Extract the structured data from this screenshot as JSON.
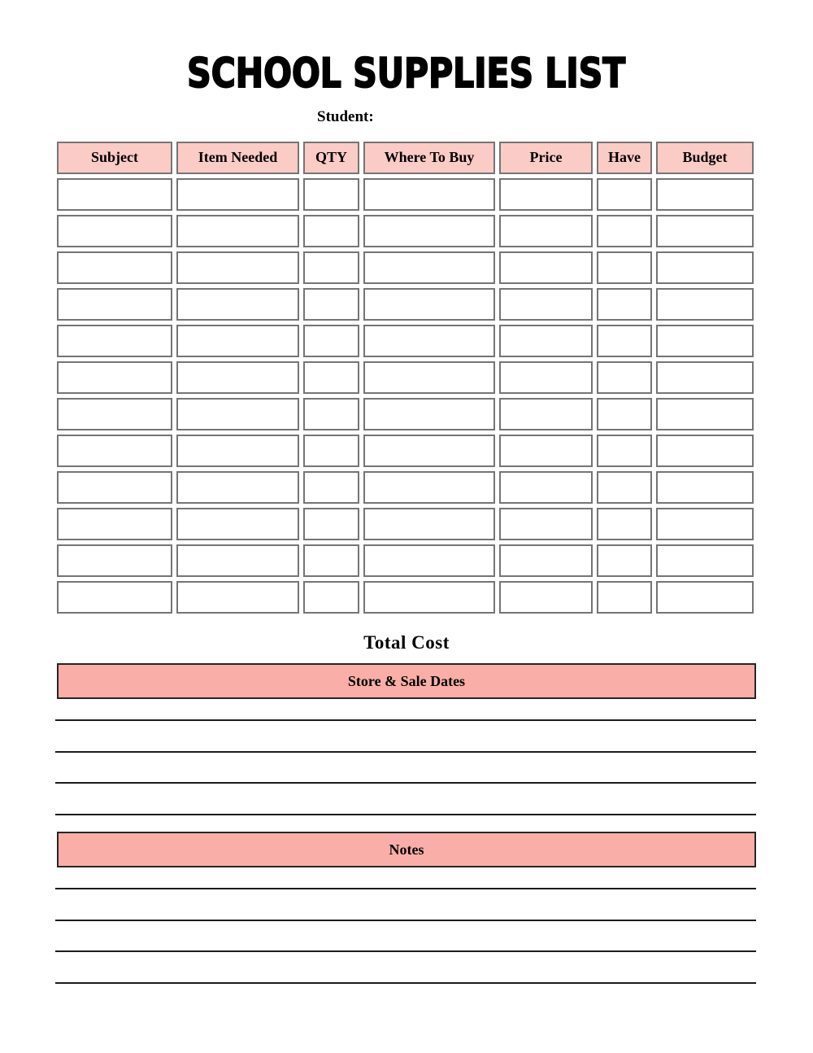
{
  "header": {
    "title": "SCHOOL SUPPLIES LIST",
    "student_label": "Student:"
  },
  "table": {
    "headers": [
      "Subject",
      "Item Needed",
      "QTY",
      "Where To Buy",
      "Price",
      "Have",
      "Budget"
    ],
    "rows": [
      [
        "",
        "",
        "",
        "",
        "",
        "",
        ""
      ],
      [
        "",
        "",
        "",
        "",
        "",
        "",
        ""
      ],
      [
        "",
        "",
        "",
        "",
        "",
        "",
        ""
      ],
      [
        "",
        "",
        "",
        "",
        "",
        "",
        ""
      ],
      [
        "",
        "",
        "",
        "",
        "",
        "",
        ""
      ],
      [
        "",
        "",
        "",
        "",
        "",
        "",
        ""
      ],
      [
        "",
        "",
        "",
        "",
        "",
        "",
        ""
      ],
      [
        "",
        "",
        "",
        "",
        "",
        "",
        ""
      ],
      [
        "",
        "",
        "",
        "",
        "",
        "",
        ""
      ],
      [
        "",
        "",
        "",
        "",
        "",
        "",
        ""
      ],
      [
        "",
        "",
        "",
        "",
        "",
        "",
        ""
      ],
      [
        "",
        "",
        "",
        "",
        "",
        "",
        ""
      ]
    ]
  },
  "sections": {
    "total_cost": {
      "label": "Total Cost"
    },
    "store_sale_dates": {
      "label": "Store & Sale Dates",
      "writing_lines": 4
    },
    "notes": {
      "label": "Notes",
      "writing_lines": 4
    }
  },
  "colors": {
    "header_cell_fill": "#fbcbc6",
    "banner_fill": "#f9aea7",
    "cell_border": "#757575",
    "banner_border": "#262626",
    "writing_line": "#1c1c1c",
    "text": "#000000",
    "page_background": "#ffffff"
  }
}
